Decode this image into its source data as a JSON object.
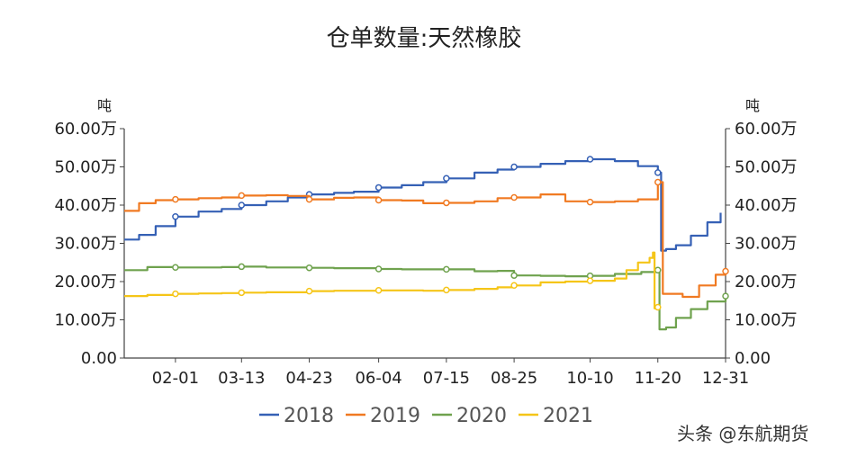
{
  "chart_data": {
    "type": "line",
    "title": "仓单数量:天然橡胶",
    "y_unit_left": "吨",
    "y_unit_right": "吨",
    "ylim": [
      0,
      600000
    ],
    "y_ticks": [
      0,
      100000,
      200000,
      300000,
      400000,
      500000,
      600000
    ],
    "y_tick_labels": [
      "0.00",
      "10.00万",
      "20.00万",
      "30.00万",
      "40.00万",
      "50.00万",
      "60.00万"
    ],
    "x_domain": [
      "01-01",
      "12-31"
    ],
    "x_ticks": [
      "02-01",
      "03-13",
      "04-23",
      "06-04",
      "07-15",
      "08-25",
      "10-10",
      "11-20",
      "12-31"
    ],
    "legend_position": "bottom",
    "series": [
      {
        "name": "2018",
        "color": "#3560b5",
        "x": [
          "01-01",
          "01-10",
          "01-20",
          "02-01",
          "02-15",
          "03-01",
          "03-13",
          "03-28",
          "04-10",
          "04-23",
          "05-08",
          "05-20",
          "06-04",
          "06-18",
          "07-01",
          "07-15",
          "08-01",
          "08-15",
          "08-25",
          "09-10",
          "09-25",
          "10-10",
          "10-25",
          "11-08",
          "11-20",
          "11-22",
          "11-25",
          "12-01",
          "12-10",
          "12-20",
          "12-28"
        ],
        "values": [
          310000,
          322000,
          345000,
          370000,
          383000,
          390000,
          400000,
          410000,
          420000,
          428000,
          432000,
          435000,
          446000,
          452000,
          460000,
          470000,
          485000,
          493000,
          500000,
          508000,
          515000,
          520000,
          515000,
          502000,
          485000,
          281000,
          285000,
          295000,
          320000,
          355000,
          380000
        ]
      },
      {
        "name": "2019",
        "color": "#f07a22",
        "x": [
          "01-01",
          "01-10",
          "01-20",
          "02-01",
          "02-15",
          "03-01",
          "03-13",
          "03-28",
          "04-10",
          "04-23",
          "05-08",
          "05-20",
          "06-04",
          "06-18",
          "07-01",
          "07-15",
          "08-01",
          "08-15",
          "08-25",
          "09-10",
          "09-25",
          "10-10",
          "10-25",
          "11-08",
          "11-20",
          "11-23",
          "11-27",
          "12-05",
          "12-15",
          "12-25",
          "12-31"
        ],
        "values": [
          385000,
          405000,
          413000,
          415000,
          418000,
          420000,
          425000,
          426000,
          424000,
          415000,
          419000,
          420000,
          413000,
          412000,
          405000,
          406000,
          410000,
          418000,
          420000,
          428000,
          410000,
          408000,
          410000,
          415000,
          460000,
          168000,
          168000,
          160000,
          190000,
          218000,
          227000
        ]
      },
      {
        "name": "2020",
        "color": "#6fa24e",
        "x": [
          "01-01",
          "01-15",
          "02-01",
          "02-15",
          "03-01",
          "03-13",
          "03-28",
          "04-10",
          "04-23",
          "05-08",
          "06-04",
          "06-18",
          "07-15",
          "08-01",
          "08-15",
          "08-25",
          "09-10",
          "09-25",
          "10-10",
          "10-25",
          "11-10",
          "11-20",
          "11-21",
          "11-25",
          "12-01",
          "12-10",
          "12-20",
          "12-31"
        ],
        "values": [
          230000,
          238000,
          237000,
          237000,
          238000,
          239000,
          237000,
          237000,
          236000,
          235000,
          233000,
          232000,
          232000,
          227000,
          228000,
          216000,
          215000,
          214000,
          215000,
          220000,
          225000,
          230000,
          75000,
          80000,
          105000,
          128000,
          148000,
          162000
        ]
      },
      {
        "name": "2021",
        "color": "#f5c518",
        "x": [
          "01-01",
          "01-15",
          "02-01",
          "02-15",
          "03-01",
          "03-13",
          "03-28",
          "04-23",
          "05-08",
          "06-04",
          "07-01",
          "07-15",
          "08-01",
          "08-15",
          "08-25",
          "09-10",
          "09-25",
          "10-10",
          "10-25",
          "11-01",
          "11-08",
          "11-15",
          "11-17",
          "11-18",
          "11-20"
        ],
        "values": [
          162000,
          165000,
          168000,
          169000,
          170000,
          171000,
          172000,
          175000,
          176000,
          177000,
          176000,
          178000,
          181000,
          185000,
          190000,
          198000,
          200000,
          202000,
          208000,
          230000,
          250000,
          262000,
          276000,
          130000,
          133000
        ]
      }
    ]
  },
  "watermark": "头条 @东航期货"
}
